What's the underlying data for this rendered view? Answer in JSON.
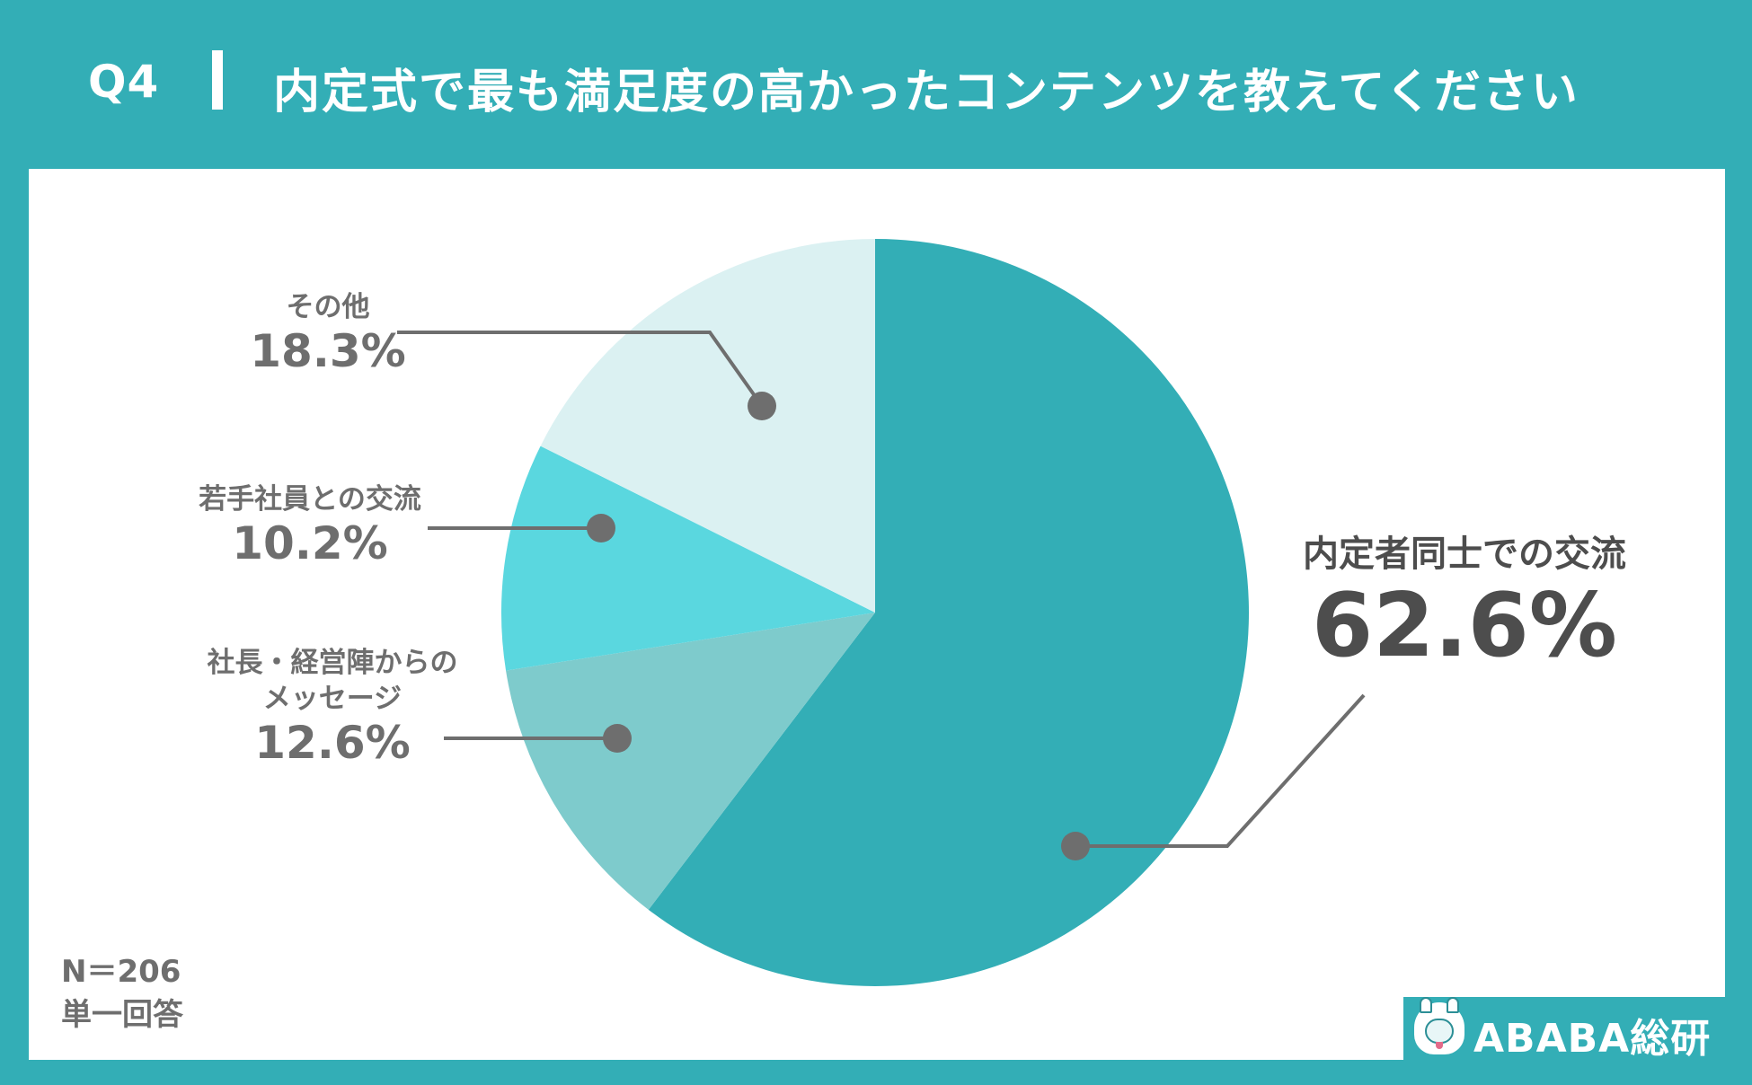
{
  "header": {
    "question_number": "Q4",
    "title": "内定式で最も満足度の高かったコンテンツを教えてください"
  },
  "chart_data": {
    "type": "pie",
    "start_angle": "12 o'clock",
    "direction": "clockwise",
    "slices": [
      {
        "label": "内定者同士での交流",
        "value": 62.6,
        "display": "62.6%",
        "color": "#33aeb6"
      },
      {
        "label": "社長・経営陣からのメッセージ",
        "label_lines": [
          "社長・経営陣からの",
          "メッセージ"
        ],
        "value": 12.6,
        "display": "12.6%",
        "color": "#7ecbcc"
      },
      {
        "label": "若手社員との交流",
        "value": 10.2,
        "display": "10.2%",
        "color": "#5ad7df"
      },
      {
        "label": "その他",
        "value": 18.3,
        "display": "18.3%",
        "color": "#dbf1f2"
      }
    ]
  },
  "footnote": {
    "sample": "N＝206",
    "answer_type": "単一回答"
  },
  "logo": {
    "text": "ABABA総研"
  },
  "colors": {
    "frame": "#33aeb6",
    "panel": "#ffffff",
    "label_text": "#6e6e6e",
    "leader_line": "#6e6e6e"
  }
}
